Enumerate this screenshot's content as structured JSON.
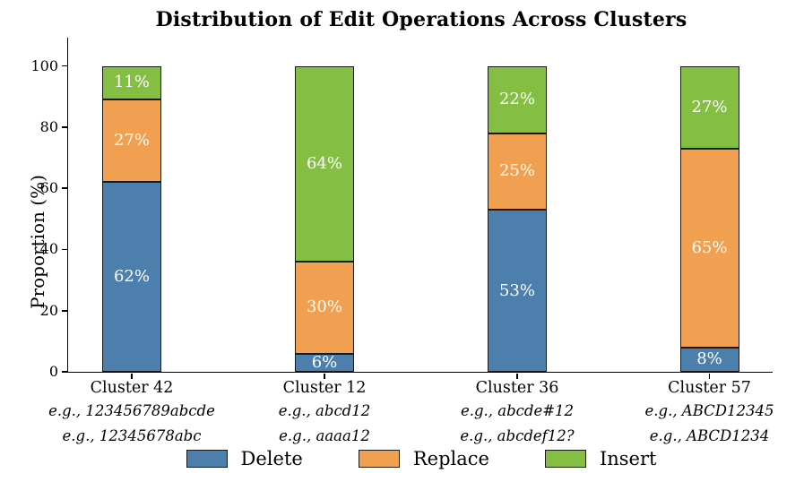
{
  "title": "Distribution of Edit Operations Across Clusters",
  "chart_data": {
    "type": "bar",
    "subtype": "stacked",
    "title": "Distribution of Edit Operations Across Clusters",
    "xlabel": "",
    "ylabel": "Proportion (%)",
    "ylim": [
      0,
      100
    ],
    "yticks": [
      0,
      20,
      40,
      60,
      80,
      100
    ],
    "grid": false,
    "legend_position": "bottom",
    "bar_value_suffix": "%",
    "bar_edge_color": "#1a1a1a",
    "bar_label_color": "#ffffff",
    "categories": [
      "Cluster 42",
      "Cluster 12",
      "Cluster 36",
      "Cluster 57"
    ],
    "category_examples": [
      [
        "e.g., 123456789abcde",
        "e.g., 12345678abc"
      ],
      [
        "e.g., abcd12",
        "e.g., aaaa12"
      ],
      [
        "e.g., abcde#12",
        "e.g., abcdef12?"
      ],
      [
        "e.g., ABCD12345",
        "e.g., ABCD1234"
      ]
    ],
    "series": [
      {
        "name": "Delete",
        "color": "#4d7fad",
        "values": [
          62,
          6,
          53,
          8
        ]
      },
      {
        "name": "Replace",
        "color": "#f0a050",
        "values": [
          27,
          30,
          25,
          65
        ]
      },
      {
        "name": "Insert",
        "color": "#84bf44",
        "values": [
          11,
          64,
          22,
          27
        ]
      }
    ]
  }
}
